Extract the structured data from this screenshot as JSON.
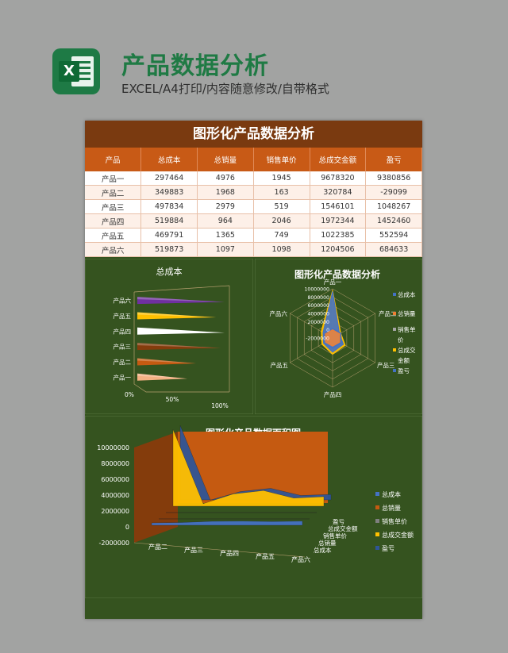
{
  "header": {
    "title": "产品数据分析",
    "subtitle": "EXCEL/A4打印/内容随意修改/自带格式",
    "icon": "excel-icon",
    "icon_letter": "X"
  },
  "sheet": {
    "title": "图形化产品数据分析",
    "table": {
      "columns": [
        "产品",
        "总成本",
        "总销量",
        "销售单价",
        "总成交金额",
        "盈亏"
      ],
      "rows": [
        [
          "产品一",
          "297464",
          "4976",
          "1945",
          "9678320",
          "9380856"
        ],
        [
          "产品二",
          "349883",
          "1968",
          "163",
          "320784",
          "-29099"
        ],
        [
          "产品三",
          "497834",
          "2979",
          "519",
          "1546101",
          "1048267"
        ],
        [
          "产品四",
          "519884",
          "964",
          "2046",
          "1972344",
          "1452460"
        ],
        [
          "产品五",
          "469791",
          "1365",
          "749",
          "1022385",
          "552594"
        ],
        [
          "产品六",
          "519873",
          "1097",
          "1098",
          "1204506",
          "684633"
        ]
      ]
    }
  },
  "chart_data": [
    {
      "type": "bar",
      "title": "总成本",
      "categories": [
        "产品一",
        "产品二",
        "产品三",
        "产品四",
        "产品五",
        "产品六"
      ],
      "values": [
        297464,
        349883,
        497834,
        519884,
        469791,
        519873
      ],
      "x_ticks": [
        "0%",
        "50%",
        "100%"
      ],
      "colors": [
        "#f4b183",
        "#c55a11",
        "#843c0c",
        "#ffffff",
        "#ffc000",
        "#7030a0"
      ],
      "legend": "none",
      "grid": false
    },
    {
      "type": "radar",
      "title": "图形化产品数据分析",
      "categories": [
        "产品一",
        "产品二",
        "产品三",
        "产品四",
        "产品五",
        "产品六"
      ],
      "axis_ticks": [
        "10000000",
        "8000000",
        "6000000",
        "4000000",
        "2000000",
        "0",
        "-2000000"
      ],
      "rmin": -2000000,
      "rmax": 10000000,
      "series": [
        {
          "name": "总成本",
          "values": [
            297464,
            349883,
            497834,
            519884,
            469791,
            519873
          ],
          "color": "#4472c4"
        },
        {
          "name": "总销量",
          "values": [
            4976,
            1968,
            2979,
            964,
            1365,
            1097
          ],
          "color": "#ed7d31"
        },
        {
          "name": "销售单价",
          "values": [
            1945,
            163,
            519,
            2046,
            749,
            1098
          ],
          "color": "#a5a5a5"
        },
        {
          "name": "总成交金额",
          "values": [
            9678320,
            320784,
            1546101,
            1972344,
            1022385,
            1204506
          ],
          "color": "#ffc000"
        },
        {
          "name": "盈亏",
          "values": [
            9380856,
            -29099,
            1048267,
            1452460,
            552594,
            684633
          ],
          "color": "#4472c4"
        }
      ],
      "legend_labels": [
        "总成本",
        "总销量",
        "销售单",
        "价",
        "总成交",
        "金额",
        "盈亏"
      ],
      "legend": "right"
    },
    {
      "type": "area",
      "title": "图形化产品数据面积图",
      "categories": [
        "产品一",
        "产品二",
        "产品三",
        "产品四",
        "产品五",
        "产品六"
      ],
      "y_ticks": [
        "10000000",
        "8000000",
        "6000000",
        "4000000",
        "2000000",
        "0",
        "-2000000"
      ],
      "ylim": [
        -2000000,
        10000000
      ],
      "series": [
        {
          "name": "总成本",
          "values": [
            297464,
            349883,
            497834,
            519884,
            469791,
            519873
          ],
          "color": "#4472c4"
        },
        {
          "name": "总销量",
          "values": [
            4976,
            1968,
            2979,
            964,
            1365,
            1097
          ],
          "color": "#c55a11"
        },
        {
          "name": "销售单价",
          "values": [
            1945,
            163,
            519,
            2046,
            749,
            1098
          ],
          "color": "#7f7f7f"
        },
        {
          "name": "总成交金额",
          "values": [
            9678320,
            320784,
            1546101,
            1972344,
            1022385,
            1204506
          ],
          "color": "#ffc000"
        },
        {
          "name": "盈亏",
          "values": [
            9380856,
            -29099,
            1048267,
            1452460,
            552594,
            684633
          ],
          "color": "#2f5597"
        }
      ],
      "x_labels_visible": [
        "产品二",
        "产品三",
        "产品四",
        "产品五",
        "产品六"
      ],
      "depth_labels": [
        "盈亏",
        "总成交金额",
        "销售单价",
        "总销量",
        "总成本"
      ],
      "legend": "right",
      "wall_color": "#c55a11"
    }
  ]
}
